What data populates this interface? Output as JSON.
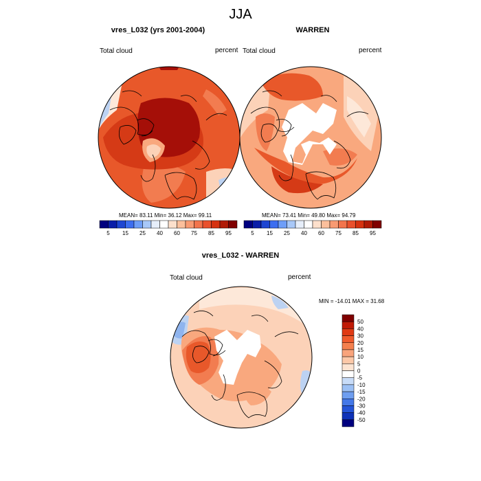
{
  "figure": {
    "title": "JJA"
  },
  "panels": [
    {
      "title": "vres_L032 (yrs 2001-2004)",
      "left_label": "Total cloud",
      "right_label": "percent",
      "stats": {
        "mean_label": "MEAN=",
        "mean": "83.11",
        "min_label": "Min=",
        "min": "36.12",
        "max_label": "Max=",
        "max": "99.11"
      }
    },
    {
      "title": "WARREN",
      "left_label": "Total cloud",
      "right_label": "percent",
      "stats": {
        "mean_label": "MEAN=",
        "mean": "73.41",
        "min_label": "Min=",
        "min": "49.80",
        "max_label": "Max=",
        "max": "94.79"
      }
    },
    {
      "title": "vres_L032 - WARREN",
      "left_label": "Total cloud",
      "right_label": "percent",
      "minmax_text": "MIN = -14.01 MAX =  31.68"
    }
  ],
  "colorbar_abs": {
    "colors": [
      "#00007f",
      "#0a1ea8",
      "#1e46d2",
      "#3c6ef0",
      "#6e9ef8",
      "#a8c8f8",
      "#e6eefa",
      "#ffffff",
      "#fde0cc",
      "#fbbf9c",
      "#f89a72",
      "#f2744c",
      "#e9502c",
      "#d63210",
      "#b01a06",
      "#800000"
    ],
    "tick_labels": [
      "5",
      "15",
      "25",
      "40",
      "60",
      "75",
      "85",
      "95"
    ]
  },
  "colorbar_diff": {
    "colors": [
      "#800000",
      "#c01a06",
      "#e03a14",
      "#f05a2c",
      "#f4804e",
      "#f9a47c",
      "#fcc8a8",
      "#fde4d2",
      "#ffffff",
      "#c8dcf8",
      "#9cc0f4",
      "#6e9ef0",
      "#4478e8",
      "#2454d8",
      "#0e32b8",
      "#00007f"
    ],
    "tick_labels": [
      "50",
      "40",
      "30",
      "20",
      "15",
      "10",
      "5",
      "0",
      "-5",
      "-10",
      "-15",
      "-20",
      "-30",
      "-40",
      "-50"
    ]
  },
  "map_colors": {
    "deep": "#a50f08",
    "high": "#d53a16",
    "mid": "#e8582a",
    "warm": "#f27c50",
    "light": "#f9a87e",
    "pale": "#fcd2b8",
    "faint": "#fde8d9",
    "blue": "#bcd2f2",
    "blue2": "#8fb4ee",
    "white": "#ffffff",
    "coast": "#000000"
  }
}
